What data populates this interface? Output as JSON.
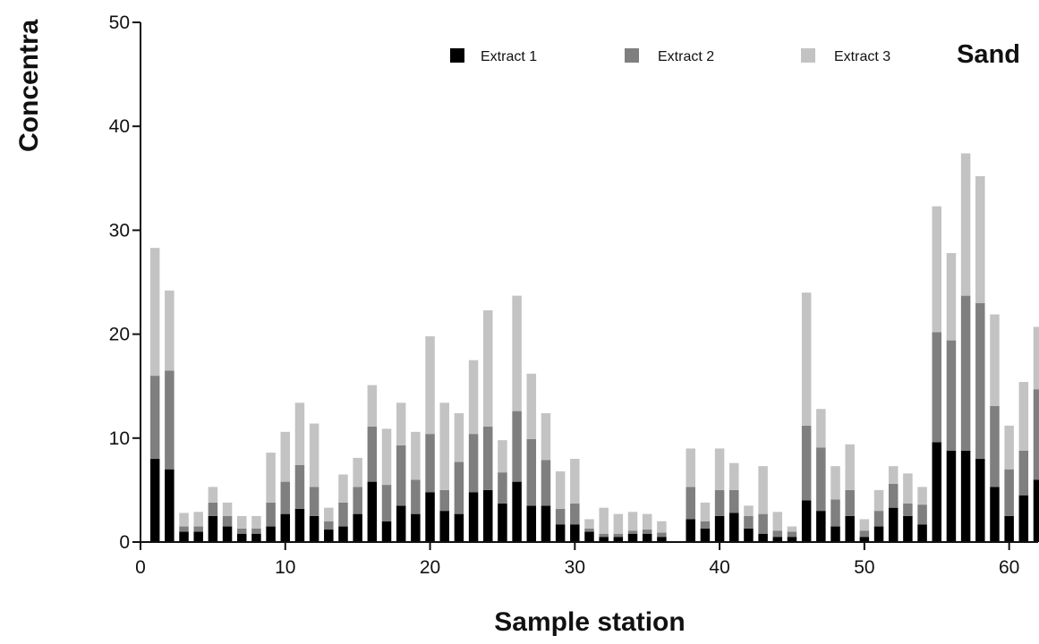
{
  "chart_data": {
    "type": "bar",
    "stacked": true,
    "panel_label": "Sand",
    "xlabel": "Sample station",
    "ylabel": "Concentra",
    "xlim": [
      0,
      62
    ],
    "ylim": [
      0,
      50
    ],
    "xticks": [
      "0",
      "10",
      "20",
      "30",
      "40",
      "50",
      "60"
    ],
    "yticks": [
      "0",
      "10",
      "20",
      "30",
      "40",
      "50"
    ],
    "grid": false,
    "legend_position": "top",
    "x": [
      1,
      2,
      3,
      4,
      5,
      6,
      7,
      8,
      9,
      10,
      11,
      12,
      13,
      14,
      15,
      16,
      17,
      18,
      19,
      20,
      21,
      22,
      23,
      24,
      25,
      26,
      27,
      28,
      29,
      30,
      31,
      32,
      33,
      34,
      35,
      36,
      37,
      38,
      39,
      40,
      41,
      42,
      43,
      44,
      45,
      46,
      47,
      48,
      49,
      50,
      51,
      52,
      53,
      54,
      55,
      56,
      57,
      58,
      59,
      60,
      61,
      62
    ],
    "series": [
      {
        "name": "Extract 1",
        "color": "#000000",
        "values": [
          8,
          7,
          1,
          1,
          2.5,
          1.5,
          0.8,
          0.8,
          1.5,
          2.7,
          3.2,
          2.5,
          1.2,
          1.5,
          2.7,
          5.8,
          2,
          3.5,
          2.7,
          4.8,
          3,
          2.7,
          4.8,
          5,
          3.7,
          5.8,
          3.5,
          3.5,
          1.7,
          1.7,
          1,
          0.5,
          0.5,
          0.8,
          0.8,
          0.5,
          0,
          2.2,
          1.3,
          2.5,
          2.8,
          1.3,
          0.8,
          0.5,
          0.5,
          4,
          3,
          1.5,
          2.5,
          0.5,
          1.5,
          3.3,
          2.5,
          1.7,
          9.6,
          8.8,
          8.8,
          8,
          5.3,
          2.5,
          4.5,
          6
        ]
      },
      {
        "name": "Extract 2",
        "color": "#7f7f7f",
        "values": [
          8,
          9.5,
          0.5,
          0.5,
          1.3,
          1,
          0.5,
          0.5,
          2.3,
          3.1,
          4.2,
          2.8,
          0.8,
          2.3,
          2.6,
          5.3,
          3.5,
          5.8,
          3.3,
          5.6,
          2,
          5,
          5.6,
          6.1,
          3,
          6.8,
          6.4,
          4.4,
          1.5,
          2,
          0.3,
          0.3,
          0.3,
          0.3,
          0.4,
          0.4,
          0,
          3.1,
          0.7,
          2.5,
          2.2,
          1.2,
          1.9,
          0.6,
          0.5,
          7.2,
          6.1,
          2.6,
          2.5,
          0.6,
          1.5,
          2.3,
          1.2,
          1.9,
          10.6,
          10.6,
          14.9,
          15,
          7.8,
          4.5,
          4.3,
          8.7
        ]
      },
      {
        "name": "Extract 3",
        "color": "#c3c3c3",
        "values": [
          12.3,
          7.7,
          1.3,
          1.4,
          1.5,
          1.3,
          1.2,
          1.2,
          4.8,
          4.8,
          6,
          6.1,
          1.3,
          2.7,
          2.8,
          4,
          5.4,
          4.1,
          4.6,
          9.4,
          8.4,
          4.7,
          7.1,
          11.2,
          3.1,
          11.1,
          6.3,
          4.5,
          3.6,
          4.3,
          0.9,
          2.5,
          1.9,
          1.8,
          1.5,
          1.1,
          0,
          3.7,
          1.8,
          4,
          2.6,
          1,
          4.6,
          1.8,
          0.5,
          12.8,
          3.7,
          3.2,
          4.4,
          1.1,
          2,
          1.7,
          2.9,
          1.7,
          12.1,
          8.4,
          13.7,
          12.2,
          8.8,
          4.2,
          6.6,
          6
        ]
      }
    ]
  },
  "legend": {
    "items": [
      {
        "label": "Extract 1",
        "color": "#000000"
      },
      {
        "label": "Extract 2",
        "color": "#7f7f7f"
      },
      {
        "label": "Extract 3",
        "color": "#c3c3c3"
      }
    ]
  }
}
